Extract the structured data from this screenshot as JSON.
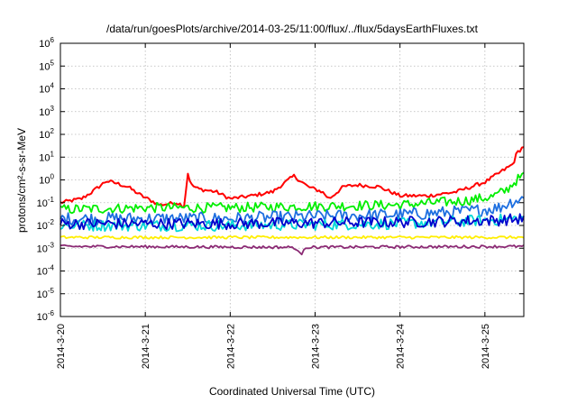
{
  "chart_data": {
    "type": "line",
    "title": "/data/run/goesPlots/archive/2014-03-25/11:00/flux/../flux/5daysEarthFluxes.txt",
    "xlabel": "Coordinated Universal Time (UTC)",
    "ylabel": "protons/cm²-s-sr-MeV",
    "yscale": "log",
    "ylim": [
      1e-06,
      1000000.0
    ],
    "xlim": [
      "2014-03-20 00:00",
      "2014-03-25 11:00"
    ],
    "grid": true,
    "y_ticks": [
      {
        "base": "10",
        "exp": "-6"
      },
      {
        "base": "10",
        "exp": "-5"
      },
      {
        "base": "10",
        "exp": "-4"
      },
      {
        "base": "10",
        "exp": "-3"
      },
      {
        "base": "10",
        "exp": "-2"
      },
      {
        "base": "10",
        "exp": "-1"
      },
      {
        "base": "10",
        "exp": "0"
      },
      {
        "base": "10",
        "exp": "1"
      },
      {
        "base": "10",
        "exp": "2"
      },
      {
        "base": "10",
        "exp": "3"
      },
      {
        "base": "10",
        "exp": "4"
      },
      {
        "base": "10",
        "exp": "5"
      },
      {
        "base": "10",
        "exp": "6"
      }
    ],
    "x_ticks": [
      "2014-3-20",
      "2014-3-21",
      "2014-3-22",
      "2014-3-23",
      "2014-3-24",
      "2014-3-25"
    ],
    "series": [
      {
        "color": "#ff0000",
        "noise": 0.08,
        "keypoints": [
          [
            "2014-03-20 00:00",
            0.1
          ],
          [
            "2014-03-20 06:00",
            0.15
          ],
          [
            "2014-03-20 09:00",
            0.3
          ],
          [
            "2014-03-20 13:00",
            0.9
          ],
          [
            "2014-03-20 16:00",
            0.7
          ],
          [
            "2014-03-20 19:00",
            0.5
          ],
          [
            "2014-03-20 23:00",
            0.2
          ],
          [
            "2014-03-21 04:00",
            0.08
          ],
          [
            "2014-03-21 09:00",
            0.1
          ],
          [
            "2014-03-21 11:00",
            0.07
          ],
          [
            "2014-03-21 12:00",
            2.0
          ],
          [
            "2014-03-21 13:00",
            0.6
          ],
          [
            "2014-03-21 15:00",
            0.4
          ],
          [
            "2014-03-21 20:00",
            0.3
          ],
          [
            "2014-03-22 00:00",
            0.15
          ],
          [
            "2014-03-22 06:00",
            0.2
          ],
          [
            "2014-03-22 12:00",
            0.3
          ],
          [
            "2014-03-22 18:00",
            1.5
          ],
          [
            "2014-03-22 22:00",
            0.5
          ],
          [
            "2014-03-23 02:00",
            0.3
          ],
          [
            "2014-03-23 04:00",
            0.15
          ],
          [
            "2014-03-23 08:00",
            0.5
          ],
          [
            "2014-03-23 12:00",
            0.6
          ],
          [
            "2014-03-23 18:00",
            0.5
          ],
          [
            "2014-03-24 00:00",
            0.2
          ],
          [
            "2014-03-24 08:00",
            0.2
          ],
          [
            "2014-03-24 16:00",
            0.3
          ],
          [
            "2014-03-25 00:00",
            0.8
          ],
          [
            "2014-03-25 04:00",
            2.0
          ],
          [
            "2014-03-25 08:00",
            5.0
          ],
          [
            "2014-03-25 09:00",
            15.0
          ],
          [
            "2014-03-25 11:00",
            30.0
          ]
        ]
      },
      {
        "color": "#00ee00",
        "noise": 0.22,
        "keypoints": [
          [
            "2014-03-20 00:00",
            0.05
          ],
          [
            "2014-03-21 00:00",
            0.06
          ],
          [
            "2014-03-22 00:00",
            0.06
          ],
          [
            "2014-03-23 00:00",
            0.07
          ],
          [
            "2014-03-24 00:00",
            0.08
          ],
          [
            "2014-03-24 18:00",
            0.12
          ],
          [
            "2014-03-25 02:00",
            0.18
          ],
          [
            "2014-03-25 06:00",
            0.35
          ],
          [
            "2014-03-25 09:00",
            1.0
          ],
          [
            "2014-03-25 11:00",
            1.5
          ]
        ]
      },
      {
        "color": "#1e6fe0",
        "noise": 0.28,
        "keypoints": [
          [
            "2014-03-20 00:00",
            0.02
          ],
          [
            "2014-03-21 00:00",
            0.02
          ],
          [
            "2014-03-22 00:00",
            0.02
          ],
          [
            "2014-03-23 00:00",
            0.025
          ],
          [
            "2014-03-24 00:00",
            0.03
          ],
          [
            "2014-03-24 18:00",
            0.04
          ],
          [
            "2014-03-25 04:00",
            0.06
          ],
          [
            "2014-03-25 08:00",
            0.12
          ],
          [
            "2014-03-25 11:00",
            0.15
          ]
        ]
      },
      {
        "color": "#00d8d8",
        "noise": 0.25,
        "keypoints": [
          [
            "2014-03-20 00:00",
            0.01
          ],
          [
            "2014-03-22 00:00",
            0.01
          ],
          [
            "2014-03-24 00:00",
            0.012
          ],
          [
            "2014-03-25 11:00",
            0.02
          ]
        ]
      },
      {
        "color": "#0000cc",
        "noise": 0.25,
        "keypoints": [
          [
            "2014-03-20 00:00",
            0.012
          ],
          [
            "2014-03-22 00:00",
            0.012
          ],
          [
            "2014-03-24 00:00",
            0.014
          ],
          [
            "2014-03-25 04:00",
            0.017
          ],
          [
            "2014-03-25 11:00",
            0.02
          ]
        ]
      },
      {
        "color": "#ffee00",
        "noise": 0.06,
        "keypoints": [
          [
            "2014-03-20 00:00",
            0.003
          ],
          [
            "2014-03-25 11:00",
            0.003
          ]
        ]
      },
      {
        "color": "#8b2a74",
        "noise": 0.06,
        "keypoints": [
          [
            "2014-03-20 00:00",
            0.0012
          ],
          [
            "2014-03-22 18:00",
            0.0011
          ],
          [
            "2014-03-22 20:00",
            0.0005
          ],
          [
            "2014-03-22 21:00",
            0.0011
          ],
          [
            "2014-03-25 11:00",
            0.0012
          ]
        ]
      }
    ]
  }
}
